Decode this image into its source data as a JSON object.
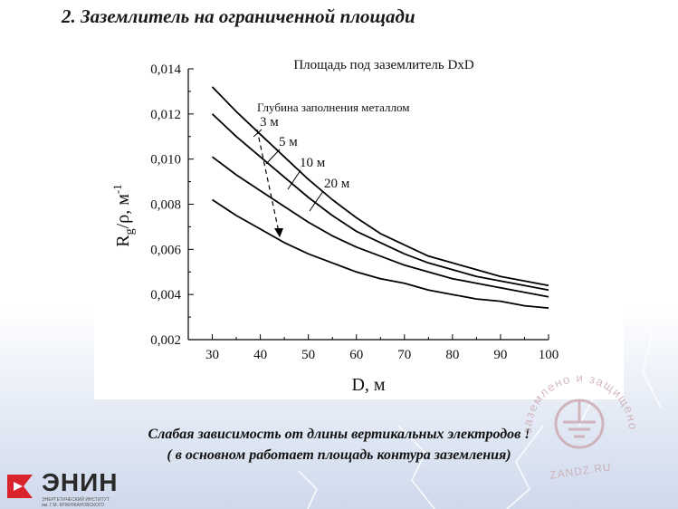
{
  "title": "2. Заземлитель на ограниченной площади",
  "chart_data": {
    "type": "line",
    "title": "Площадь под заземлитель  DxD",
    "xlabel": "D,  м",
    "ylabel_main": "R",
    "ylabel_sub": "g",
    "ylabel_rest": "/ρ,  м",
    "ylabel_sup": "-1",
    "xlim": [
      25,
      100
    ],
    "ylim": [
      0.002,
      0.014
    ],
    "x_ticks": [
      "30",
      "40",
      "50",
      "60",
      "70",
      "80",
      "90",
      "100"
    ],
    "y_ticks": [
      "0,002",
      "0,004",
      "0,006",
      "0,008",
      "0,010",
      "0,012",
      "0,014"
    ],
    "annotation_title": "Глубина заполнения металлом",
    "x": [
      30,
      35,
      40,
      45,
      50,
      55,
      60,
      65,
      70,
      75,
      80,
      85,
      90,
      95,
      100
    ],
    "series": [
      {
        "name": "3 м",
        "values": [
          0.0132,
          0.0121,
          0.0111,
          0.0101,
          0.0091,
          0.0082,
          0.0074,
          0.0067,
          0.0062,
          0.0057,
          0.0054,
          0.0051,
          0.0048,
          0.0046,
          0.0044
        ]
      },
      {
        "name": "5 м",
        "values": [
          0.012,
          0.011,
          0.0101,
          0.0092,
          0.0083,
          0.0075,
          0.0068,
          0.0063,
          0.0058,
          0.0054,
          0.0051,
          0.0048,
          0.0046,
          0.0044,
          0.0042
        ]
      },
      {
        "name": "10 м",
        "values": [
          0.0101,
          0.0093,
          0.0086,
          0.0079,
          0.0072,
          0.0066,
          0.0061,
          0.0057,
          0.0053,
          0.005,
          0.0047,
          0.0045,
          0.0043,
          0.0041,
          0.0039
        ]
      },
      {
        "name": "20 м",
        "values": [
          0.0082,
          0.0075,
          0.0069,
          0.0063,
          0.0058,
          0.0054,
          0.005,
          0.0047,
          0.0045,
          0.0042,
          0.004,
          0.0038,
          0.0037,
          0.0035,
          0.0034
        ]
      }
    ],
    "grid": false,
    "line_color": "#000000"
  },
  "captions": {
    "line1": "Слабая зависимость от длины вертикальных электродов !",
    "line2": "( в основном работает площадь контура заземления)"
  },
  "logo": {
    "name": "ЭНИН",
    "sub1": "ЭНЕРГЕТИЧЕСКИЙ ИНСТИТУТ",
    "sub2": "им. Г.М. КРЖИЖАНОВСКОГО",
    "accent_color": "#d9232d"
  },
  "watermark": {
    "arc_text": "заземлено и защищено",
    "bottom_text": "ZANDZ.RU",
    "color": "#c9a3a8"
  }
}
